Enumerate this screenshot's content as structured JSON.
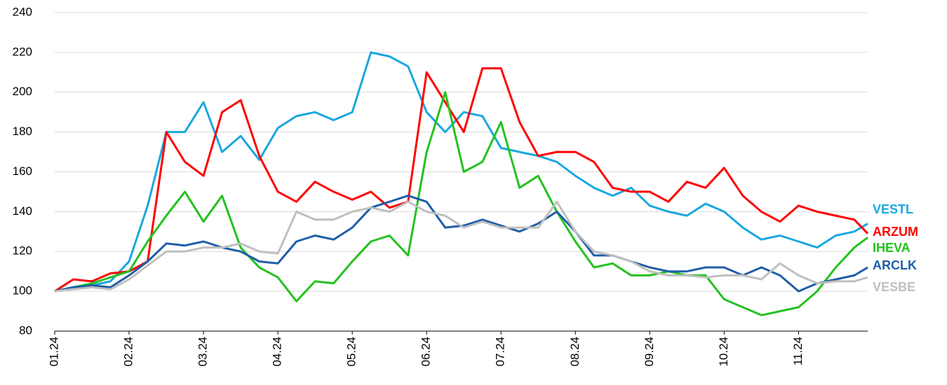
{
  "chart_data": {
    "type": "line",
    "x": [
      0,
      0.25,
      0.5,
      0.75,
      1,
      1.25,
      1.5,
      1.75,
      2,
      2.25,
      2.5,
      2.75,
      3,
      3.25,
      3.5,
      3.75,
      4,
      4.25,
      4.5,
      4.75,
      5,
      5.25,
      5.5,
      5.75,
      6,
      6.25,
      6.5,
      6.75,
      7,
      7.25,
      7.5,
      7.75,
      8,
      8.25,
      8.5,
      8.75,
      9,
      9.25,
      9.5,
      9.75,
      10,
      10.25,
      10.5,
      10.75,
      10.93
    ],
    "xlim": [
      0,
      10.93
    ],
    "xticks": [
      {
        "value": 0,
        "label": "01.24"
      },
      {
        "value": 1,
        "label": "02.24"
      },
      {
        "value": 2,
        "label": "03.24"
      },
      {
        "value": 3,
        "label": "04.24"
      },
      {
        "value": 4,
        "label": "05.24"
      },
      {
        "value": 5,
        "label": "06.24"
      },
      {
        "value": 6,
        "label": "07.24"
      },
      {
        "value": 7,
        "label": "08.24"
      },
      {
        "value": 8,
        "label": "09.24"
      },
      {
        "value": 9,
        "label": "10.24"
      },
      {
        "value": 10,
        "label": "11.24"
      }
    ],
    "ylim": [
      80,
      240
    ],
    "yticks": [
      80,
      100,
      120,
      140,
      160,
      180,
      200,
      220,
      240
    ],
    "grid": true,
    "series": [
      {
        "name": "VESTL",
        "color": "#1aa7e0",
        "values": [
          100,
          102,
          103,
          105,
          115,
          143,
          180,
          180,
          195,
          170,
          178,
          166,
          182,
          188,
          190,
          186,
          190,
          220,
          218,
          213,
          190,
          180,
          190,
          188,
          172,
          170,
          168,
          165,
          158,
          152,
          148,
          152,
          143,
          140,
          138,
          144,
          140,
          132,
          126,
          128,
          125,
          122,
          128,
          130,
          134
        ]
      },
      {
        "name": "ARZUM",
        "color": "#ff0000",
        "values": [
          100,
          106,
          105,
          109,
          110,
          115,
          180,
          165,
          158,
          190,
          196,
          168,
          150,
          145,
          155,
          150,
          146,
          150,
          142,
          145,
          210,
          195,
          180,
          212,
          212,
          185,
          168,
          170,
          170,
          165,
          152,
          150,
          150,
          145,
          155,
          152,
          162,
          148,
          140,
          135,
          143,
          140,
          138,
          136,
          129
        ]
      },
      {
        "name": "IHEVA",
        "color": "#22c21e",
        "values": [
          100,
          102,
          104,
          107,
          110,
          125,
          138,
          150,
          135,
          148,
          122,
          112,
          107,
          95,
          105,
          104,
          115,
          125,
          128,
          118,
          170,
          200,
          160,
          165,
          185,
          152,
          158,
          140,
          125,
          112,
          114,
          108,
          108,
          110,
          108,
          108,
          96,
          92,
          88,
          90,
          92,
          100,
          112,
          122,
          127
        ]
      },
      {
        "name": "ARCLK",
        "color": "#1f5ea8",
        "values": [
          100,
          102,
          103,
          102,
          108,
          115,
          124,
          123,
          125,
          122,
          120,
          115,
          114,
          125,
          128,
          126,
          132,
          142,
          145,
          148,
          145,
          132,
          133,
          136,
          133,
          130,
          134,
          140,
          130,
          118,
          118,
          115,
          112,
          110,
          110,
          112,
          112,
          108,
          112,
          108,
          100,
          104,
          106,
          108,
          112
        ]
      },
      {
        "name": "VESBE",
        "color": "#bfbfbf",
        "values": [
          100,
          101,
          102,
          101,
          106,
          113,
          120,
          120,
          122,
          122,
          124,
          120,
          119,
          140,
          136,
          136,
          140,
          142,
          140,
          145,
          140,
          138,
          132,
          135,
          132,
          132,
          132,
          145,
          130,
          120,
          118,
          115,
          110,
          108,
          108,
          107,
          108,
          108,
          106,
          114,
          108,
          104,
          105,
          105,
          107
        ]
      }
    ]
  }
}
